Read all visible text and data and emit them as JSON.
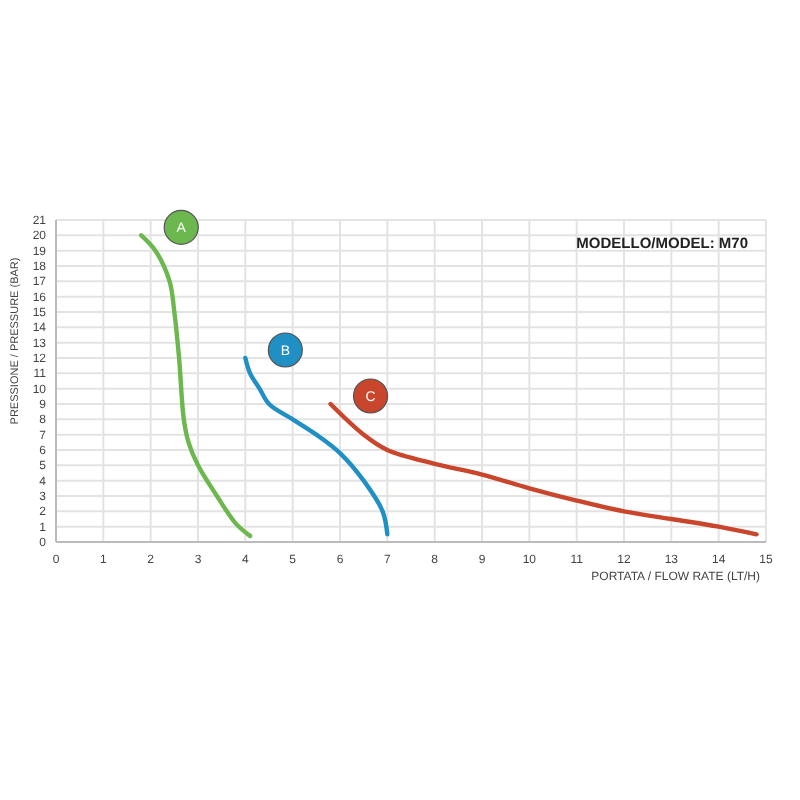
{
  "chart_data": {
    "type": "line",
    "title": "MODELLO/MODEL: M70",
    "xlabel": "PORTATA / FLOW RATE (LT/H)",
    "ylabel": "PRESSIONE / PRESSURE (BAR)",
    "xlim": [
      0,
      15
    ],
    "ylim": [
      0,
      21
    ],
    "xticks": [
      0,
      1,
      2,
      3,
      4,
      5,
      6,
      7,
      8,
      9,
      10,
      11,
      12,
      13,
      14,
      15
    ],
    "yticks": [
      0,
      1,
      2,
      3,
      4,
      5,
      6,
      7,
      8,
      9,
      10,
      11,
      12,
      13,
      14,
      15,
      16,
      17,
      18,
      19,
      20,
      21
    ],
    "grid": true,
    "legend": false,
    "marker": "none",
    "line_style": "solid",
    "series": [
      {
        "name": "A",
        "color": "#6cb84f",
        "x": [
          1.8,
          2.1,
          2.4,
          2.5,
          2.6,
          2.7,
          2.8,
          3.0,
          3.4,
          3.8,
          4.1
        ],
        "values": [
          20,
          19,
          17,
          15,
          12,
          8,
          6.5,
          5,
          3,
          1.2,
          0.4
        ]
      },
      {
        "name": "B",
        "color": "#1f8fc4",
        "x": [
          4.0,
          4.1,
          4.3,
          4.5,
          5.0,
          5.5,
          6.0,
          6.5,
          6.9,
          7.0
        ],
        "values": [
          12,
          11,
          10,
          9,
          8,
          7,
          5.8,
          4,
          2,
          0.5
        ]
      },
      {
        "name": "C",
        "color": "#c9452b",
        "x": [
          5.8,
          6.5,
          7,
          8,
          9,
          10,
          11,
          12,
          13,
          14,
          14.8
        ],
        "values": [
          9,
          7,
          6,
          5.1,
          4.4,
          3.5,
          2.7,
          2,
          1.5,
          1,
          0.5
        ]
      }
    ]
  }
}
